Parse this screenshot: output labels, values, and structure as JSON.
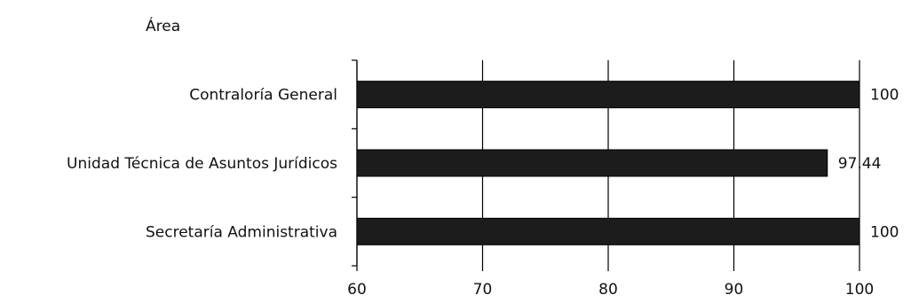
{
  "chart_data": {
    "type": "bar",
    "orientation": "horizontal",
    "title": "Área",
    "categories": [
      "Contraloría General",
      "Unidad Técnica de Asuntos Jurídicos",
      "Secretaría Administrativa"
    ],
    "values": [
      100,
      97.44,
      100
    ],
    "data_labels": [
      "100",
      "97.44",
      "100"
    ],
    "xlim": [
      60,
      100
    ],
    "xticks": [
      60,
      70,
      80,
      90,
      100
    ],
    "grid": "vertical",
    "legend": "none",
    "colors": {
      "bar_fill": "#1c1c1c",
      "bar_edge": "#000000",
      "grid": "#000000",
      "text": "#111111"
    }
  }
}
